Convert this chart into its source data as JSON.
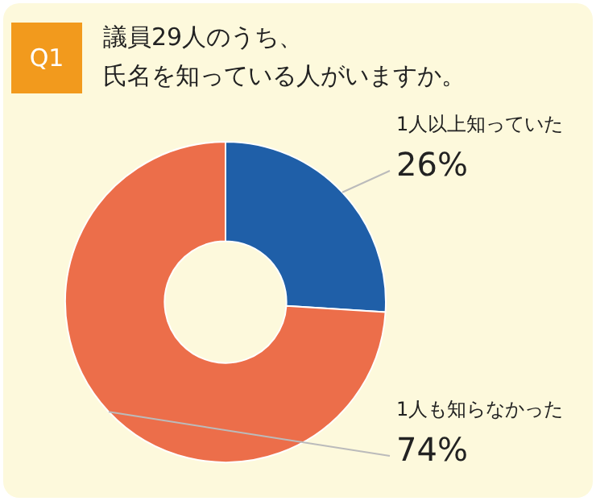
{
  "chart_data": {
    "type": "donut",
    "title": "議員29人のうち、氏名を知っている人がいますか。",
    "annotations": [
      "Q1"
    ],
    "categories": [
      "1人以上知っていた",
      "1人も知らなかった"
    ],
    "values": [
      26,
      74
    ],
    "colors": [
      "#1f5fa8",
      "#ec6e4a"
    ],
    "value_labels": [
      "26%",
      "74%"
    ],
    "legend": false
  }
}
